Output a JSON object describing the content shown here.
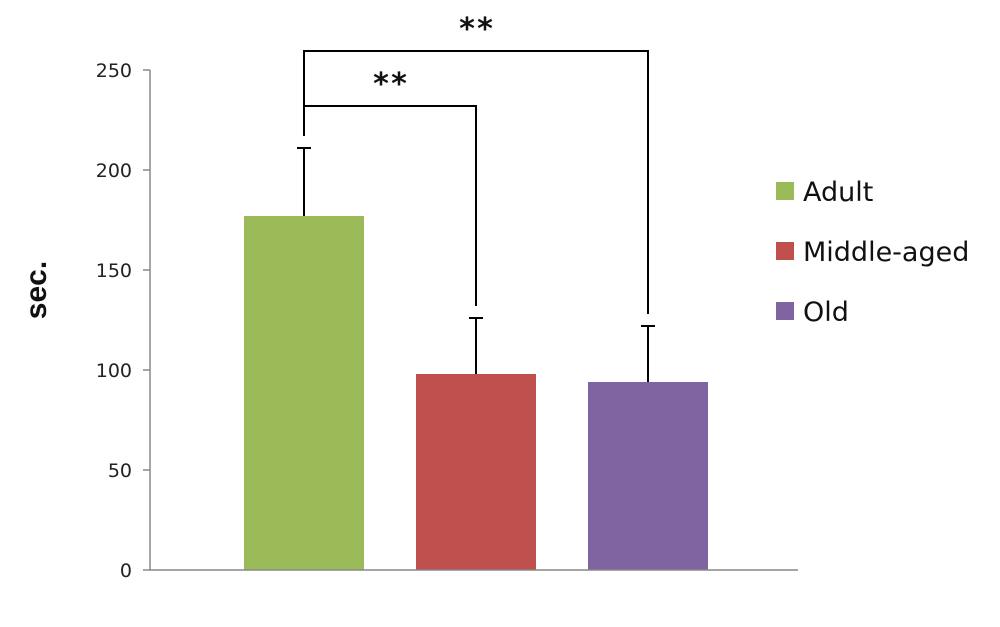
{
  "chart_data": {
    "type": "bar",
    "categories": [
      "Adult",
      "Middle-aged",
      "Old"
    ],
    "values": [
      177,
      98,
      94
    ],
    "errors": [
      34,
      28,
      28
    ],
    "colors": [
      "#9bbb59",
      "#c0504d",
      "#8064a2"
    ],
    "ylabel": "sec.",
    "ylim": [
      0,
      250
    ],
    "yticks": [
      "0",
      "50",
      "100",
      "150",
      "200",
      "250"
    ],
    "legend": {
      "placement": "right",
      "entries": [
        "Adult",
        "Middle-aged",
        "Old"
      ]
    },
    "grid": false,
    "significance": [
      {
        "from": "Adult",
        "to": "Middle-aged",
        "label": "**"
      },
      {
        "from": "Adult",
        "to": "Old",
        "label": "**"
      }
    ]
  }
}
